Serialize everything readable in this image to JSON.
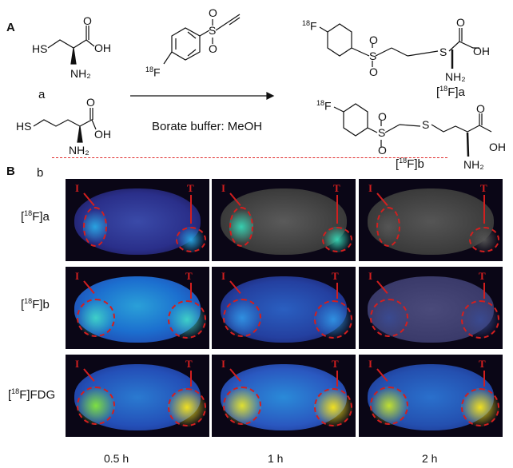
{
  "panel_a": {
    "label": "A",
    "reactant_a": {
      "hs": "HS",
      "oh": "OH",
      "o": "O",
      "nh2": "NH₂",
      "name": "a"
    },
    "reactant_b": {
      "hs": "HS",
      "oh": "OH",
      "o": "O",
      "nh2": "NH₂",
      "name": "b"
    },
    "reagent": {
      "f": "F",
      "iso": "18",
      "o1": "O",
      "s": "S",
      "o2": "O"
    },
    "conditions": "Borate buffer: MeOH",
    "product_a": {
      "iso": "18",
      "f": "F",
      "o1": "O",
      "s1": "S",
      "o2": "O",
      "s2": "S",
      "o": "O",
      "oh": "OH",
      "nh2": "NH₂",
      "name_pre": "[",
      "name_post": "F]a"
    },
    "product_b": {
      "iso": "18",
      "f": "F",
      "o1": "O",
      "s1": "S",
      "o2": "O",
      "s2": "S",
      "o": "O",
      "oh": "OH",
      "nh2": "NH₂",
      "name_pre": "[",
      "name_post": "F]b"
    }
  },
  "panel_b": {
    "label": "B",
    "rows": [
      {
        "pre": "[",
        "iso": "18",
        "post": "F]a"
      },
      {
        "pre": "[",
        "iso": "18",
        "post": "F]b"
      },
      {
        "pre": "[",
        "iso": "18",
        "post": "F]FDG"
      }
    ],
    "columns": [
      "0.5 h",
      "1 h",
      "2 h"
    ],
    "marker_inflammation": "I",
    "marker_tumor": "T",
    "colors": {
      "roi": "#d21f1f",
      "divider": "#e03030"
    }
  }
}
